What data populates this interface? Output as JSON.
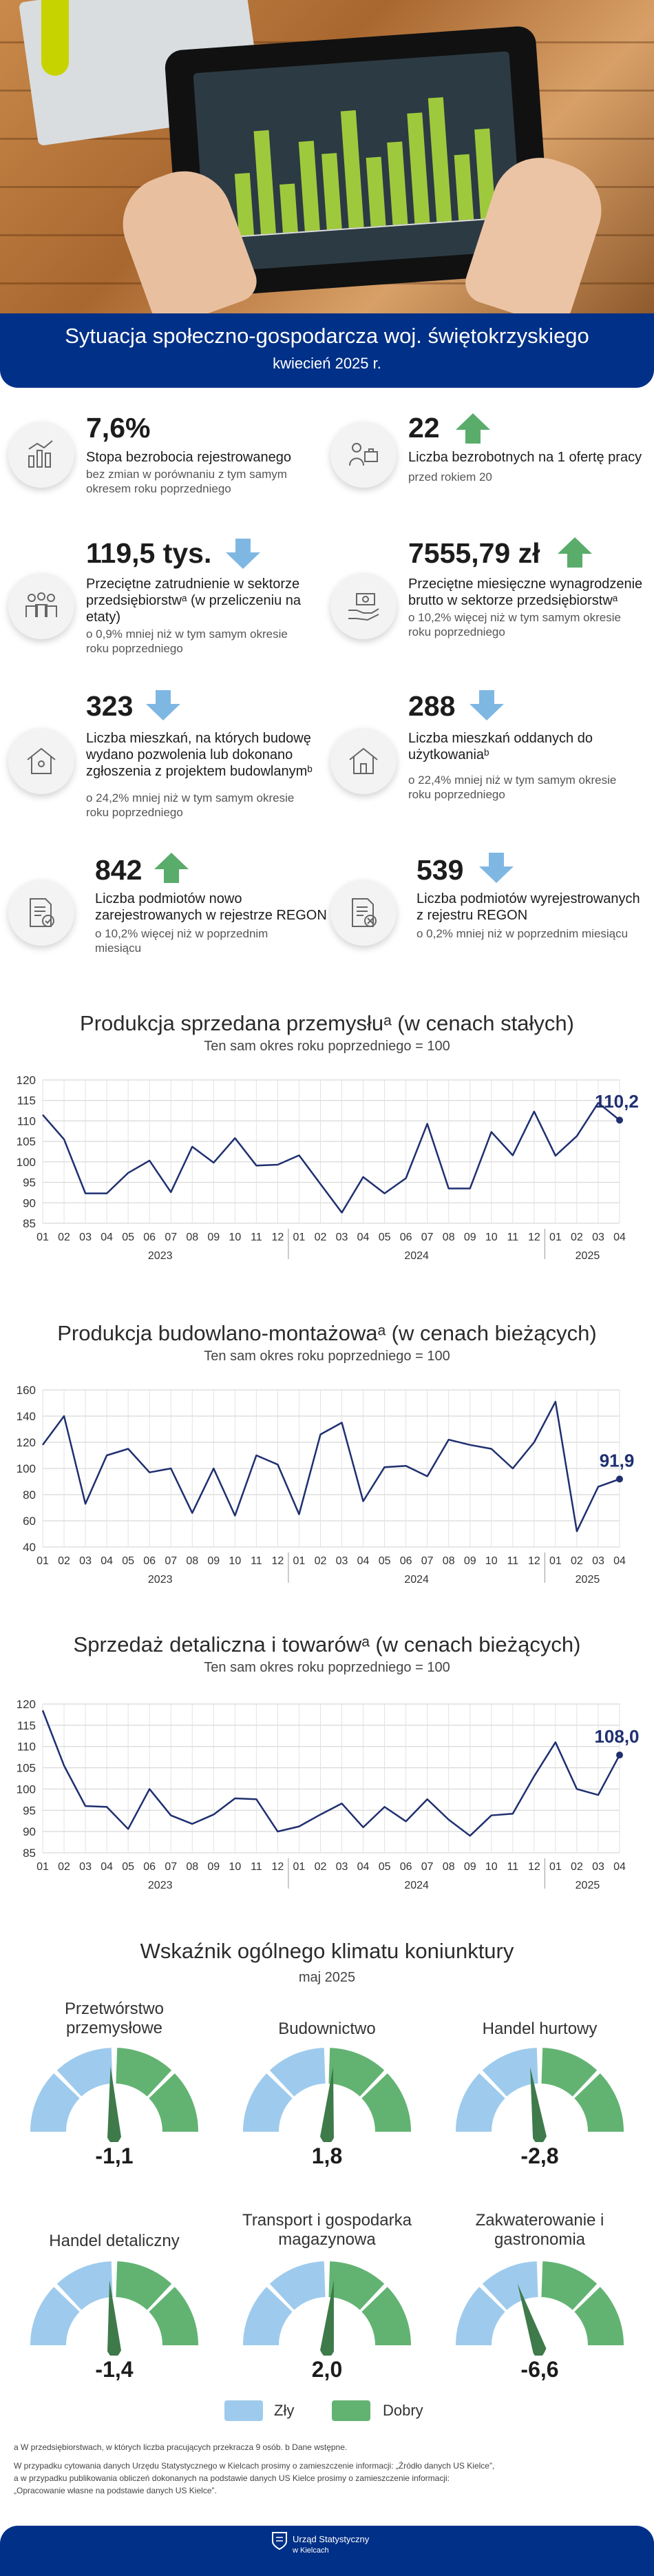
{
  "header": {
    "title": "Sytuacja społeczno-gospodarcza woj. świętokrzyskiego",
    "subtitle": "kwiecień 2025 r."
  },
  "indicators": {
    "unemployment_rate": {
      "value": "7,6%",
      "label": "Stopa bezrobocia rejestrowanego",
      "note": "bez zmian w porównaniu z tym samym okresem roku poprzedniego",
      "icon": "bar-chart-icon"
    },
    "unemployed_per_offer": {
      "value": "22",
      "label": "Liczba bezrobotnych na 1 ofertę pracy",
      "note": "przed rokiem 20",
      "trend": "up",
      "icon": "job-seekers-icon"
    },
    "employment": {
      "value": "119,5 tys.",
      "label": "Przeciętne zatrudnienie w sektorze przedsiębiorstwᵃ (w przeliczeniu na etaty)",
      "note": "o 0,9% mniej niż w tym samym okresie roku poprzedniego",
      "trend": "down",
      "icon": "people-icon"
    },
    "wage": {
      "value": "7555,79 zł",
      "label": "Przeciętne miesięczne wynagrodzenie brutto w sektorze przedsiębiorstwᵃ",
      "note": "o 10,2% więcej niż w tym samym okresie roku poprzedniego",
      "trend": "up",
      "icon": "hand-money-icon"
    },
    "dwellings_permits": {
      "value": "323",
      "label": "Liczba mieszkań, na których budowę wydano pozwolenia lub dokonano zgłoszenia z projektem budowlanymᵇ",
      "note": "o 24,2% mniej niż w tym samym okresie roku poprzedniego",
      "trend": "down",
      "icon": "house-outline-icon"
    },
    "dwellings_completed": {
      "value": "288",
      "label": "Liczba mieszkań oddanych do użytkowaniaᵇ",
      "note": "o 22,4% mniej niż w tym samym okresie roku poprzedniego",
      "trend": "down",
      "icon": "house-icon"
    },
    "regon_new": {
      "value": "842",
      "label": "Liczba podmiotów nowo zarejestrowanych w rejestrze REGON",
      "note": "o 10,2% więcej niż w poprzednim miesiącu",
      "trend": "up",
      "icon": "document-check-icon"
    },
    "regon_removed": {
      "value": "539",
      "label": "Liczba podmiotów wyrejestrowanych z rejestru REGON",
      "note": "o 0,2% mniej niż w poprzednim miesiącu",
      "trend": "down",
      "icon": "document-remove-icon"
    }
  },
  "colors": {
    "navy": "#003087",
    "green": "#5aac6b",
    "arrow_blue": "#7fb7e3",
    "gauge_blue": "#9ecbed",
    "gauge_green": "#62b372",
    "line": "#1f2f70"
  },
  "chart_data": [
    {
      "type": "line",
      "title": "Produkcja sprzedana przemysłuᵃ (w cenach stałych)",
      "subtitle": "Ten sam okres roku poprzedniego = 100",
      "x": [
        "01",
        "02",
        "03",
        "04",
        "05",
        "06",
        "07",
        "08",
        "09",
        "10",
        "11",
        "12",
        "01",
        "02",
        "03",
        "04",
        "05",
        "06",
        "07",
        "08",
        "09",
        "10",
        "11",
        "12",
        "01",
        "02",
        "03",
        "04"
      ],
      "year_labels": [
        "2023",
        "2024",
        "2025"
      ],
      "values": [
        111.5,
        105.5,
        92.3,
        92.3,
        97.3,
        100.3,
        92.6,
        103.7,
        99.8,
        105.8,
        99.1,
        99.3,
        101.6,
        94.6,
        87.6,
        96.3,
        92.3,
        96.0,
        109.3,
        93.5,
        93.5,
        107.3,
        101.6,
        112.3,
        101.5,
        106.3,
        114.4,
        110.2
      ],
      "last_label": "110,2",
      "ylim": [
        85,
        120
      ],
      "yticks": [
        85,
        90,
        95,
        100,
        105,
        110,
        115,
        120
      ],
      "grid": true
    },
    {
      "type": "line",
      "title": "Produkcja budowlano-montażowaᵃ (w cenach bieżących)",
      "subtitle": "Ten sam okres roku poprzedniego = 100",
      "x": [
        "01",
        "02",
        "03",
        "04",
        "05",
        "06",
        "07",
        "08",
        "09",
        "10",
        "11",
        "12",
        "01",
        "02",
        "03",
        "04",
        "05",
        "06",
        "07",
        "08",
        "09",
        "10",
        "11",
        "12",
        "01",
        "02",
        "03",
        "04"
      ],
      "year_labels": [
        "2023",
        "2024",
        "2025"
      ],
      "values": [
        118,
        140,
        73,
        110,
        115,
        97,
        100,
        66,
        100,
        64,
        110,
        103,
        65,
        126,
        135,
        75,
        101,
        102,
        94,
        122,
        118,
        115,
        100,
        120,
        151,
        52,
        86,
        91.9
      ],
      "last_label": "91,9",
      "ylim": [
        40,
        160
      ],
      "yticks": [
        40,
        60,
        80,
        100,
        120,
        140,
        160
      ],
      "grid": true
    },
    {
      "type": "line",
      "title": "Sprzedaż detaliczna i towarówᵃ (w cenach bieżących)",
      "subtitle": "Ten sam okres roku poprzedniego = 100",
      "x": [
        "01",
        "02",
        "03",
        "04",
        "05",
        "06",
        "07",
        "08",
        "09",
        "10",
        "11",
        "12",
        "01",
        "02",
        "03",
        "04",
        "05",
        "06",
        "07",
        "08",
        "09",
        "10",
        "11",
        "12",
        "01",
        "02",
        "03",
        "04"
      ],
      "year_labels": [
        "2023",
        "2024",
        "2025"
      ],
      "values": [
        118.5,
        105.5,
        96.0,
        95.8,
        90.6,
        100.0,
        93.8,
        91.8,
        94.0,
        97.8,
        97.6,
        90.0,
        91.2,
        94.0,
        96.6,
        91.0,
        95.8,
        92.4,
        97.6,
        92.8,
        89.0,
        93.8,
        94.2,
        103.0,
        111.0,
        100.0,
        98.6,
        108.0
      ],
      "last_label": "108,0",
      "ylim": [
        85,
        120
      ],
      "yticks": [
        85,
        90,
        95,
        100,
        105,
        110,
        115,
        120
      ],
      "grid": true
    }
  ],
  "climate": {
    "title": "Wskaźnik ogólnego klimatu koniunktury",
    "subtitle": "maj 2025",
    "legend": {
      "bad": "Zły",
      "good": "Dobry"
    },
    "gauges": [
      {
        "name": "Przetwórstwo przemysłowe",
        "value": "-1,1",
        "num": -1.1
      },
      {
        "name": "Budownictwo",
        "value": "1,8",
        "num": 1.8
      },
      {
        "name": "Handel hurtowy",
        "value": "-2,8",
        "num": -2.8
      },
      {
        "name": "Handel detaliczny",
        "value": "-1,4",
        "num": -1.4
      },
      {
        "name": "Transport i gospodarka magazynowa",
        "value": "2,0",
        "num": 2.0
      },
      {
        "name": "Zakwaterowanie i gastronomia",
        "value": "-6,6",
        "num": -6.6
      }
    ]
  },
  "footnotes": {
    "line1": "a W przedsiębiorstwach, w których liczba pracujących przekracza 9 osób. b Dane wstępne.",
    "line2": "W przypadku cytowania danych Urzędu Statystycznego w Kielcach prosimy o zamieszczenie informacji: „Źródło danych US Kielce”,",
    "line3": "a w przypadku publikowania obliczeń dokonanych na podstawie danych US Kielce prosimy o zamieszczenie informacji:",
    "line4": "„Opracowanie własne na podstawie danych US Kielce”."
  },
  "footer": {
    "logo_line1": "Urząd Statystyczny",
    "logo_line2": "w Kielcach"
  }
}
